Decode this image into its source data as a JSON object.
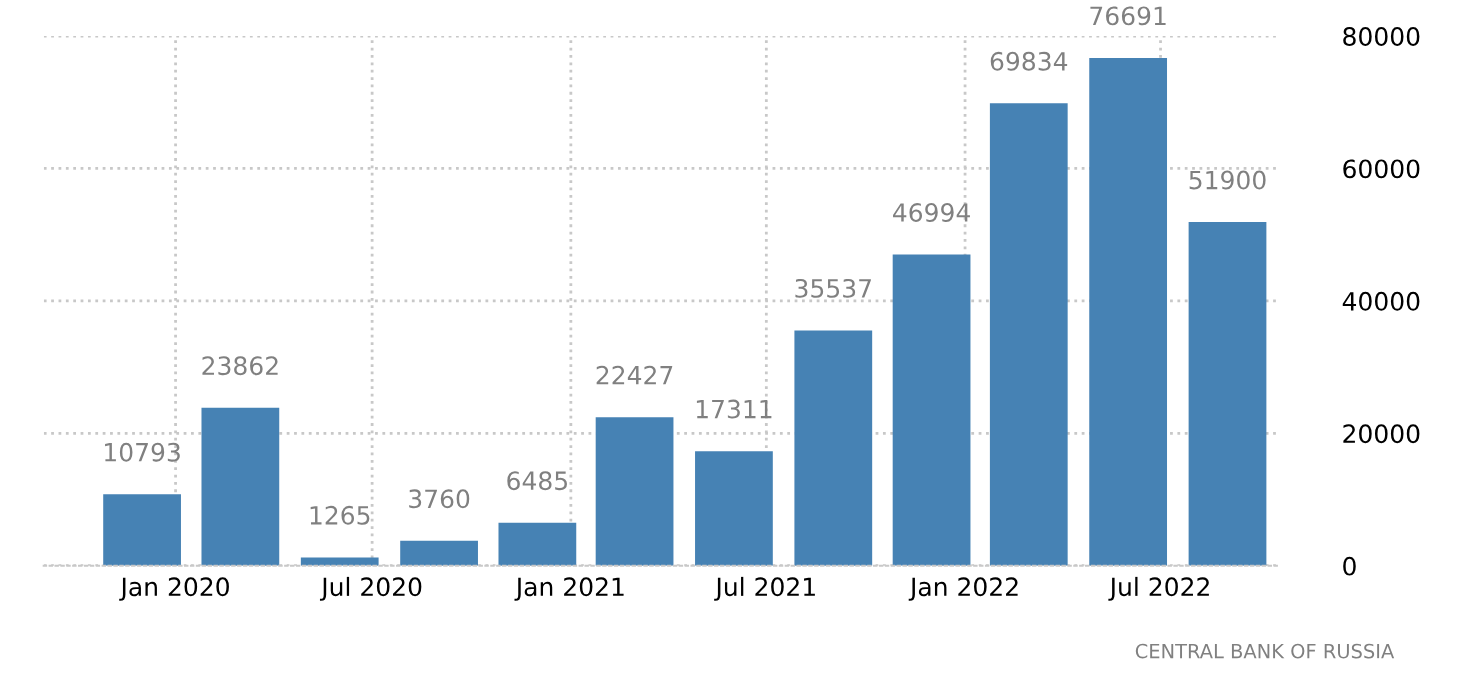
{
  "chart_data": {
    "type": "bar",
    "x": [
      "2019-12",
      "2020-03",
      "2020-06",
      "2020-09",
      "2020-12",
      "2021-03",
      "2021-06",
      "2021-09",
      "2021-12",
      "2022-03",
      "2022-06",
      "2022-09"
    ],
    "values": [
      10793,
      23862,
      1265,
      3760,
      6485,
      22427,
      17311,
      35537,
      46994,
      69834,
      76691,
      51900
    ],
    "color": "#4682b4",
    "data_labels": true,
    "xlim": [
      "2019-09-01",
      "2022-10-20"
    ],
    "xticks": [
      {
        "value": "2020-01",
        "label": "Jan 2020"
      },
      {
        "value": "2020-07",
        "label": "Jul 2020"
      },
      {
        "value": "2021-01",
        "label": "Jan 2021"
      },
      {
        "value": "2021-07",
        "label": "Jul 2021"
      },
      {
        "value": "2022-01",
        "label": "Jan 2022"
      },
      {
        "value": "2022-07",
        "label": "Jul 2022"
      }
    ],
    "ylim": [
      0,
      80000
    ],
    "yticks": [
      0,
      20000,
      40000,
      60000,
      80000
    ],
    "grid": true,
    "annotations": [
      "CENTRAL BANK OF RUSSIA"
    ]
  }
}
